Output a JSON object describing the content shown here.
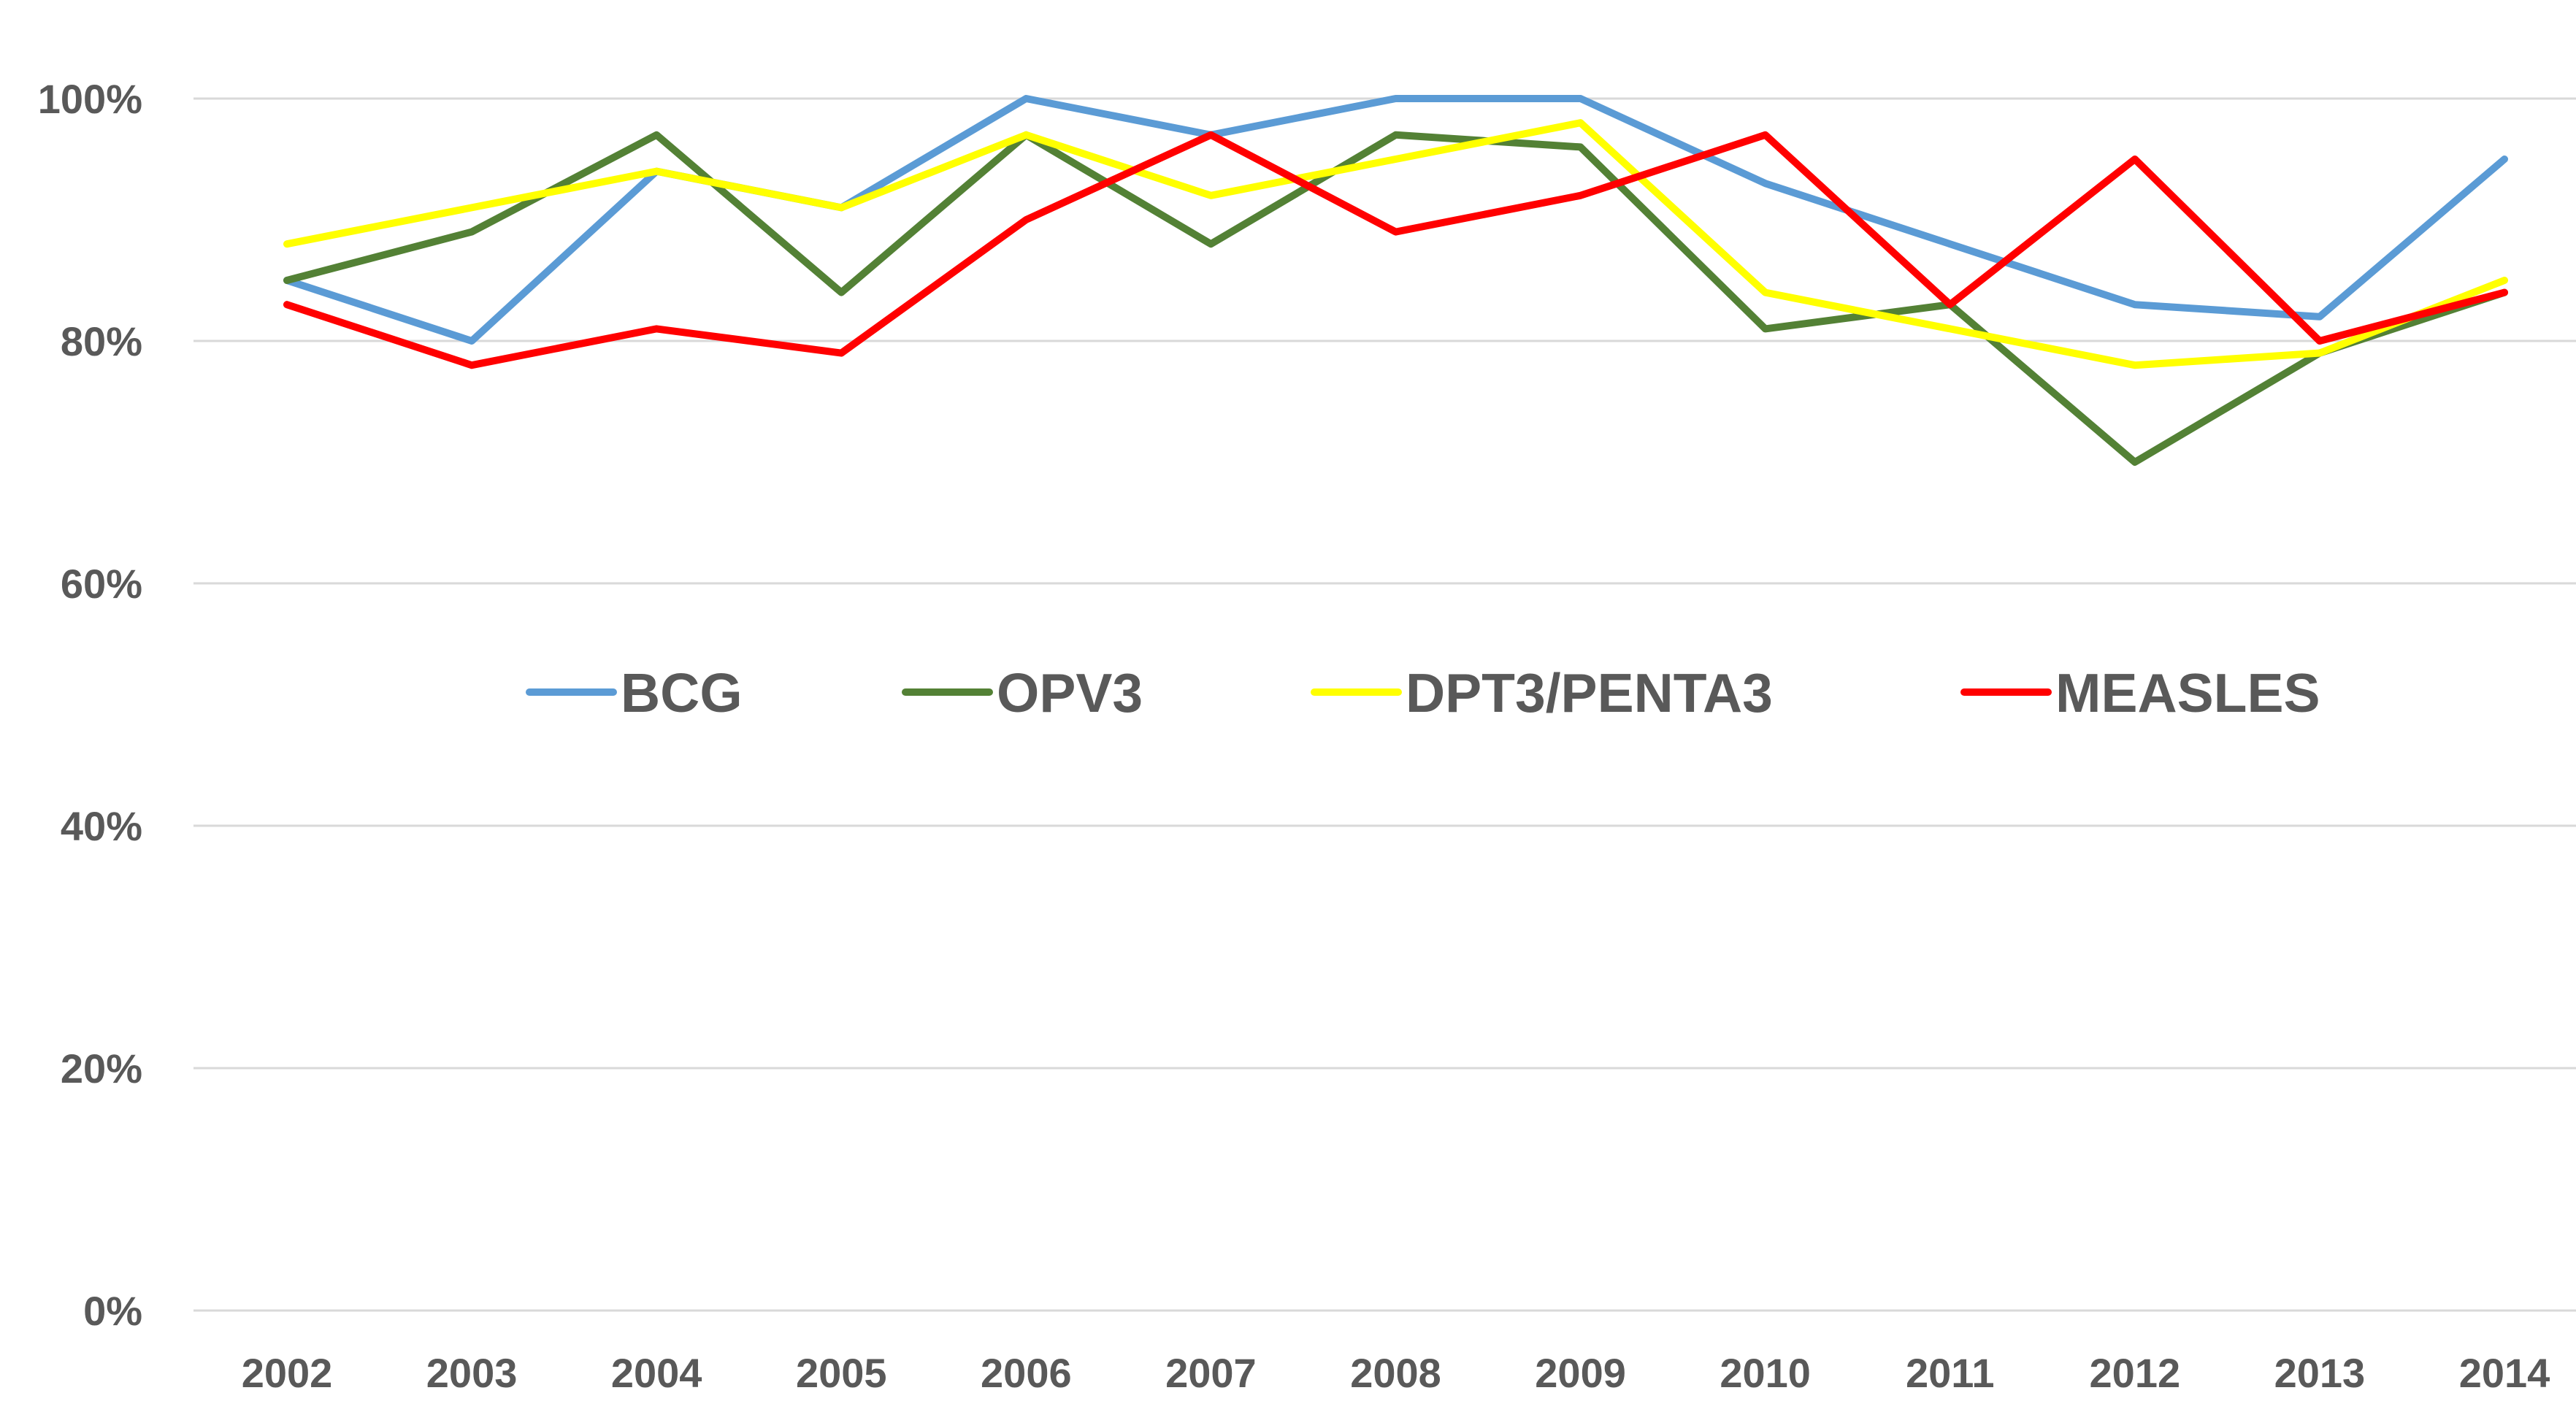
{
  "chart_data": {
    "type": "line",
    "title": "",
    "xlabel": "",
    "ylabel": "",
    "x": [
      "2002",
      "2003",
      "2004",
      "2005",
      "2006",
      "2007",
      "2008",
      "2009",
      "2010",
      "2011",
      "2012",
      "2013",
      "2014"
    ],
    "ylim": [
      0,
      100
    ],
    "yticks": [
      0,
      20,
      40,
      60,
      80,
      100
    ],
    "ytick_labels": [
      "0%",
      "20%",
      "40%",
      "60%",
      "80%",
      "100%"
    ],
    "grid": true,
    "legend_position": "inside-center",
    "series": [
      {
        "name": "BCG",
        "color": "#5b9bd5",
        "values": [
          85,
          80,
          94,
          91,
          100,
          97,
          100,
          100,
          93,
          88,
          83,
          82,
          95
        ]
      },
      {
        "name": "OPV3",
        "color": "#538135",
        "values": [
          85,
          89,
          97,
          84,
          97,
          88,
          97,
          96,
          81,
          83,
          70,
          79,
          84
        ]
      },
      {
        "name": "DPT3/PENTA3",
        "color": "#ffff00",
        "values": [
          88,
          91,
          94,
          91,
          97,
          92,
          95,
          98,
          84,
          81,
          78,
          79,
          85
        ]
      },
      {
        "name": "MEASLES",
        "color": "#ff0000",
        "values": [
          83,
          78,
          81,
          79,
          90,
          97,
          89,
          92,
          97,
          83,
          95,
          80,
          84
        ]
      }
    ]
  }
}
